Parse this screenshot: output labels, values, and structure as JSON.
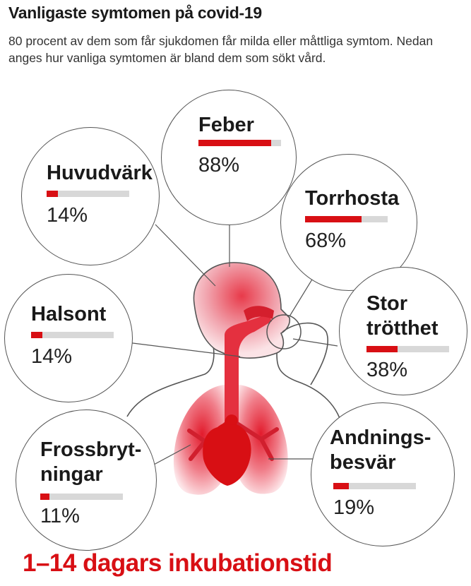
{
  "title": "Vanligaste symtomen på covid-19",
  "intro": "80 procent av dem som får sjukdomen får milda eller måttliga symtom. Nedan anges hur vanliga symtomen är bland dem som sökt vård.",
  "symptoms": [
    {
      "id": "feber",
      "label": "Feber",
      "percent_text": "88%",
      "value": 88
    },
    {
      "id": "huvudvark",
      "label": "Huvudvärk",
      "percent_text": "14%",
      "value": 14
    },
    {
      "id": "torrhosta",
      "label": "Torrhosta",
      "percent_text": "68%",
      "value": 68
    },
    {
      "id": "halsont",
      "label": "Halsont",
      "percent_text": "14%",
      "value": 14
    },
    {
      "id": "trotthet",
      "label_line1": "Stor",
      "label_line2": "trötthet",
      "percent_text": "38%",
      "value": 38
    },
    {
      "id": "frossbrytningar",
      "label_line1": "Frossbryt-",
      "label_line2": "ningar",
      "percent_text": "11%",
      "value": 11
    },
    {
      "id": "andningsbesvar",
      "label_line1": "Andnings-",
      "label_line2": "besvär",
      "percent_text": "19%",
      "value": 19
    }
  ],
  "footer": "1–14 dagars inkubationstid",
  "colors": {
    "accent": "#d80f14",
    "track": "#d8d8d8",
    "outline": "#555555"
  }
}
